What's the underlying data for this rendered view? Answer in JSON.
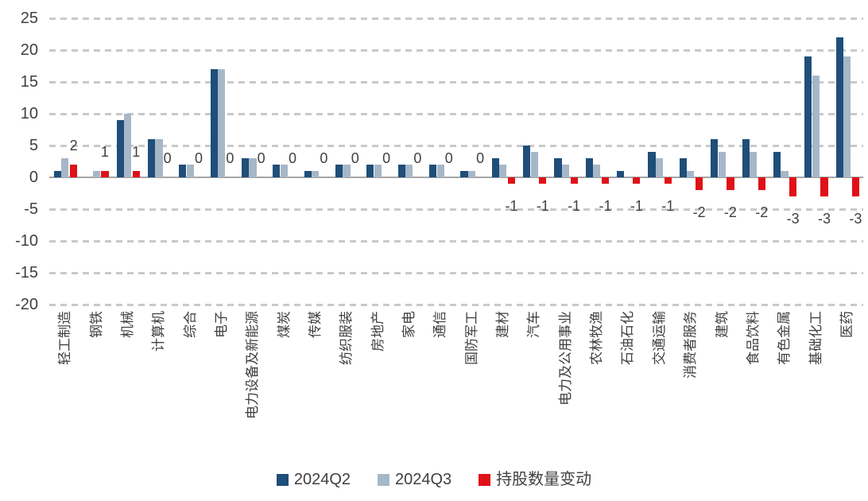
{
  "chart_data": {
    "type": "bar",
    "title": "",
    "xlabel": "",
    "ylabel": "",
    "ylim": [
      -20,
      25
    ],
    "ytick_step": 5,
    "y_ticks": [
      25,
      20,
      15,
      10,
      5,
      0,
      -5,
      -10,
      -15,
      -20
    ],
    "grid": "horizontal-dashed",
    "legend_position": "bottom-center",
    "categories": [
      "轻工制造",
      "钢铁",
      "机械",
      "计算机",
      "综合",
      "电子",
      "电力设备及新能源",
      "煤炭",
      "传媒",
      "纺织服装",
      "房地产",
      "家电",
      "通信",
      "国防军工",
      "建材",
      "汽车",
      "电力及公用事业",
      "农林牧渔",
      "石油石化",
      "交通运输",
      "消费者服务",
      "建筑",
      "食品饮料",
      "有色金属",
      "基础化工",
      "医药"
    ],
    "series": [
      {
        "name": "2024Q2",
        "color": "#1F4E79",
        "values": [
          1,
          0,
          9,
          6,
          2,
          17,
          3,
          2,
          1,
          2,
          2,
          2,
          2,
          1,
          3,
          5,
          3,
          3,
          1,
          4,
          3,
          6,
          6,
          4,
          19,
          22
        ]
      },
      {
        "name": "2024Q3",
        "color": "#A6B7C8",
        "values": [
          3,
          1,
          10,
          6,
          2,
          17,
          3,
          2,
          1,
          2,
          2,
          2,
          2,
          1,
          2,
          4,
          2,
          2,
          0,
          3,
          1,
          4,
          4,
          1,
          16,
          19
        ]
      },
      {
        "name": "持股数量变动",
        "color": "#E01118",
        "values": [
          2,
          1,
          1,
          0,
          0,
          0,
          0,
          0,
          0,
          0,
          0,
          0,
          0,
          0,
          -1,
          -1,
          -1,
          -1,
          -1,
          -1,
          -2,
          -2,
          -2,
          -3,
          -3,
          -3
        ],
        "data_labels_shown": true
      }
    ],
    "colors": {
      "gridline": "#C9C9C9",
      "zero_axis": "#A6A6A6",
      "text": "#404040"
    }
  }
}
